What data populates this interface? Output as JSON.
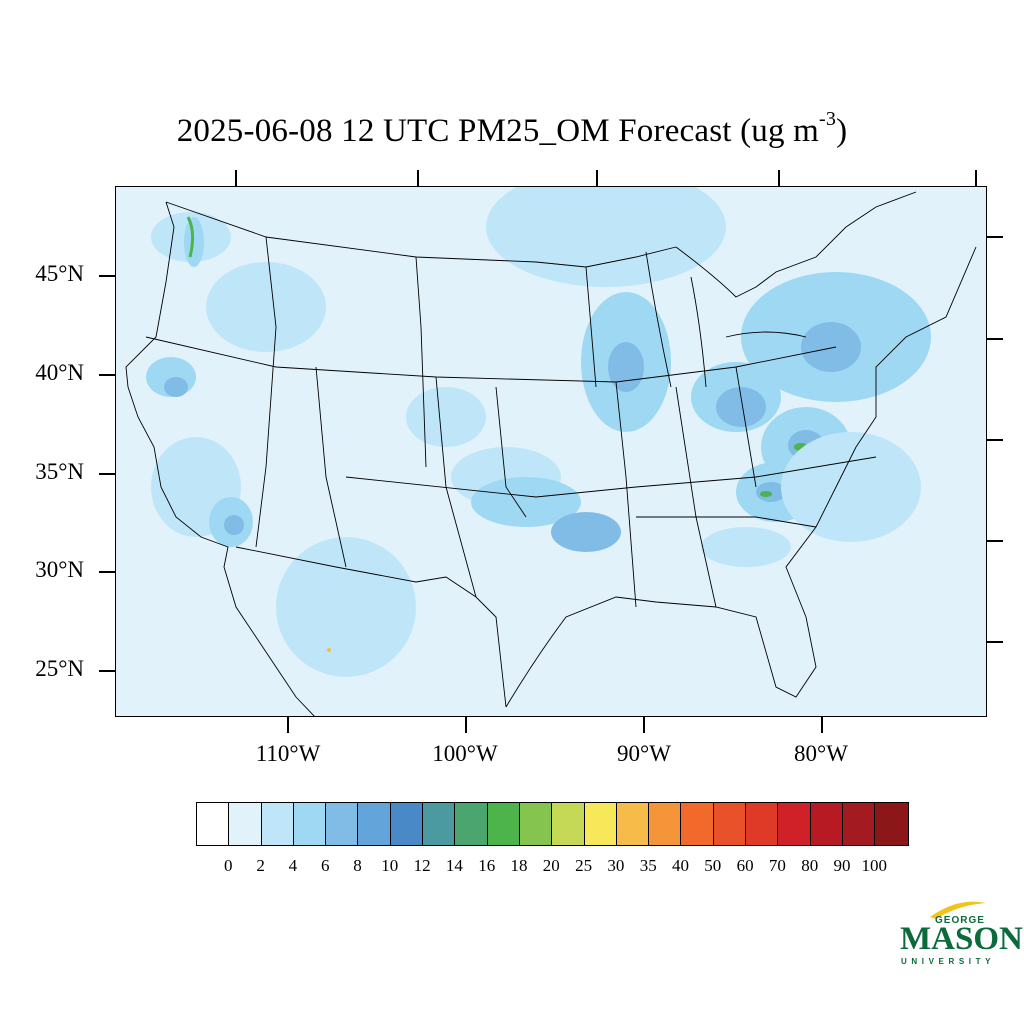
{
  "title": {
    "main": "2025-06-08 12 UTC PM25_OM Forecast (ug m",
    "superscript": "-3",
    "close": ")"
  },
  "map": {
    "background_color": "#e1f2fb",
    "lat_labels": [
      "45°N",
      "40°N",
      "35°N",
      "30°N",
      "25°N"
    ],
    "lon_labels": [
      "110°W",
      "100°W",
      "90°W",
      "80°W"
    ]
  },
  "colorbar": {
    "colors": [
      "#ffffff",
      "#e1f2fb",
      "#bfe6f8",
      "#9fd8f3",
      "#80bce6",
      "#63a5db",
      "#4a89c8",
      "#4b9aa0",
      "#4aa66e",
      "#4cb44a",
      "#86c450",
      "#c5d957",
      "#f7e85a",
      "#f6bb48",
      "#f5953a",
      "#f26a2b",
      "#e9512a",
      "#df3a27",
      "#d12128",
      "#b81a24",
      "#a31b20",
      "#8c1719"
    ],
    "labels": [
      "0",
      "2",
      "4",
      "6",
      "8",
      "10",
      "12",
      "14",
      "16",
      "18",
      "20",
      "25",
      "30",
      "35",
      "40",
      "50",
      "60",
      "70",
      "80",
      "90",
      "100"
    ]
  },
  "logo": {
    "line1": "GEORGE",
    "line2": "MASON",
    "line3": "UNIVERSITY",
    "color": "#0b6b3a",
    "accent": "#f0c419"
  }
}
